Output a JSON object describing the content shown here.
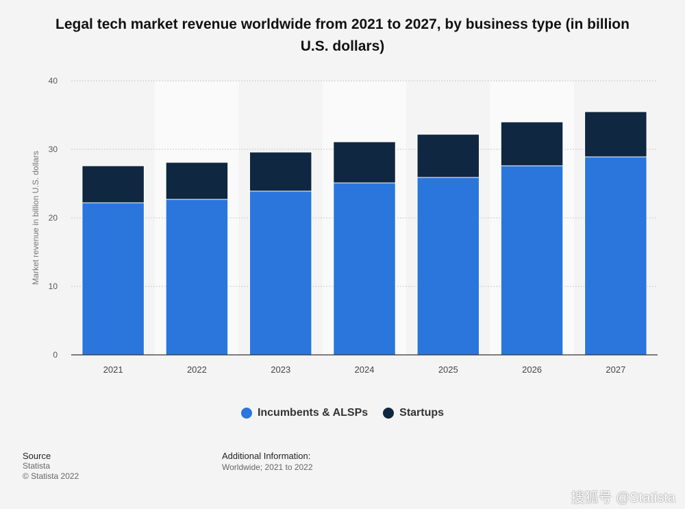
{
  "title": "Legal tech market revenue worldwide from 2021 to 2027, by business type (in billion U.S. dollars)",
  "chart_data": {
    "type": "bar",
    "stacked": true,
    "categories": [
      "2021",
      "2022",
      "2023",
      "2024",
      "2025",
      "2026",
      "2027"
    ],
    "series": [
      {
        "name": "Incumbents & ALSPs",
        "color": "#2a76dd",
        "values": [
          22.2,
          22.7,
          23.9,
          25.1,
          25.9,
          27.6,
          28.9
        ]
      },
      {
        "name": "Startups",
        "color": "#0f2740",
        "values": [
          5.4,
          5.4,
          5.7,
          6.0,
          6.3,
          6.4,
          6.6
        ]
      }
    ],
    "ylabel": "Market revenue in billion U.S. dollars",
    "xlabel": "",
    "ylim": [
      0,
      40
    ],
    "yticks": [
      "0",
      "10",
      "20",
      "30",
      "40"
    ],
    "grid": true,
    "legend": "bottom-center"
  },
  "footer": {
    "source_heading": "Source",
    "source_name": "Statista",
    "copyright": "© Statista 2022",
    "additional_heading": "Additional Information:",
    "additional_text": "Worldwide; 2021 to 2022"
  },
  "watermark": "搜狐号 @Statista"
}
